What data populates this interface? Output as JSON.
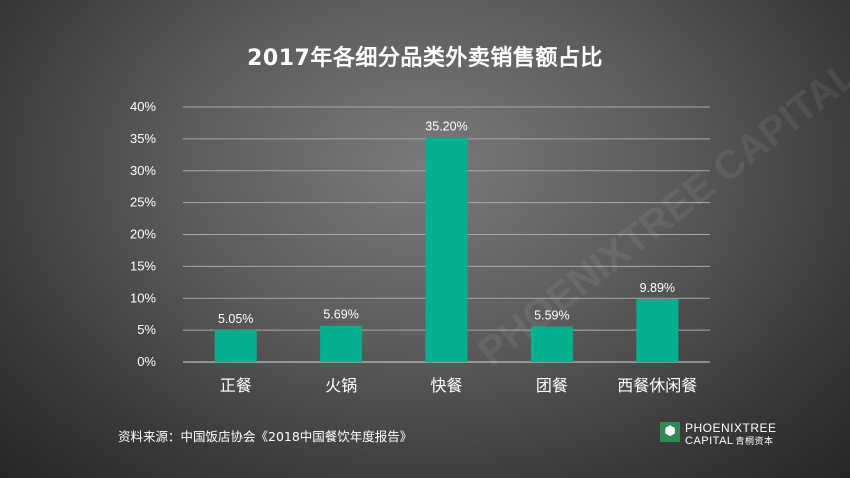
{
  "chart_data": {
    "type": "bar",
    "title": "2017年各细分品类外卖销售额占比",
    "categories": [
      "正餐",
      "火锅",
      "快餐",
      "团餐",
      "西餐休闲餐"
    ],
    "values": [
      5.05,
      5.69,
      35.2,
      5.59,
      9.89
    ],
    "data_labels": [
      "5.05%",
      "5.69%",
      "35.20%",
      "5.59%",
      "9.89%"
    ],
    "unit": "%",
    "ylim": [
      0,
      40
    ],
    "yticks": [
      "0%",
      "5%",
      "10%",
      "15%",
      "20%",
      "25%",
      "30%",
      "35%",
      "40%"
    ],
    "grid": true,
    "bar_color": "#05b08e"
  },
  "source_note": "资料来源：中国饭店协会《2018中国餐饮年度报告》",
  "logo": {
    "line1": "PHOENIXTREE",
    "line2": "CAPITAL",
    "line2_cn": "青桐资本",
    "watermark": "PHOENIXTREE CAPITAL"
  }
}
